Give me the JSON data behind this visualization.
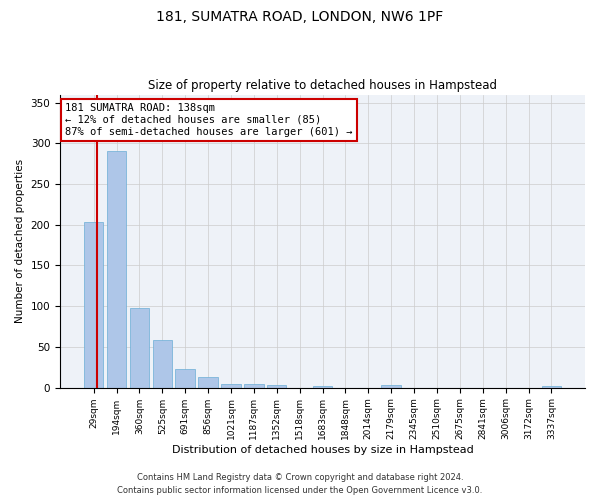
{
  "title1": "181, SUMATRA ROAD, LONDON, NW6 1PF",
  "title2": "Size of property relative to detached houses in Hampstead",
  "xlabel": "Distribution of detached houses by size in Hampstead",
  "ylabel": "Number of detached properties",
  "categories": [
    "29sqm",
    "194sqm",
    "360sqm",
    "525sqm",
    "691sqm",
    "856sqm",
    "1021sqm",
    "1187sqm",
    "1352sqm",
    "1518sqm",
    "1683sqm",
    "1848sqm",
    "2014sqm",
    "2179sqm",
    "2345sqm",
    "2510sqm",
    "2675sqm",
    "2841sqm",
    "3006sqm",
    "3172sqm",
    "3337sqm"
  ],
  "values": [
    203,
    291,
    98,
    59,
    23,
    13,
    5,
    5,
    3,
    0,
    2,
    0,
    0,
    3,
    0,
    0,
    0,
    0,
    0,
    0,
    2
  ],
  "bar_color": "#aec6e8",
  "bar_edge_color": "#6baed6",
  "property_line_color": "#cc0000",
  "annotation_text": "181 SUMATRA ROAD: 138sqm\n← 12% of detached houses are smaller (85)\n87% of semi-detached houses are larger (601) →",
  "annotation_box_color": "#ffffff",
  "annotation_box_edge": "#cc0000",
  "ylim": [
    0,
    360
  ],
  "yticks": [
    0,
    50,
    100,
    150,
    200,
    250,
    300,
    350
  ],
  "grid_color": "#cccccc",
  "bg_color": "#eef2f8",
  "footer1": "Contains HM Land Registry data © Crown copyright and database right 2024.",
  "footer2": "Contains public sector information licensed under the Open Government Licence v3.0."
}
